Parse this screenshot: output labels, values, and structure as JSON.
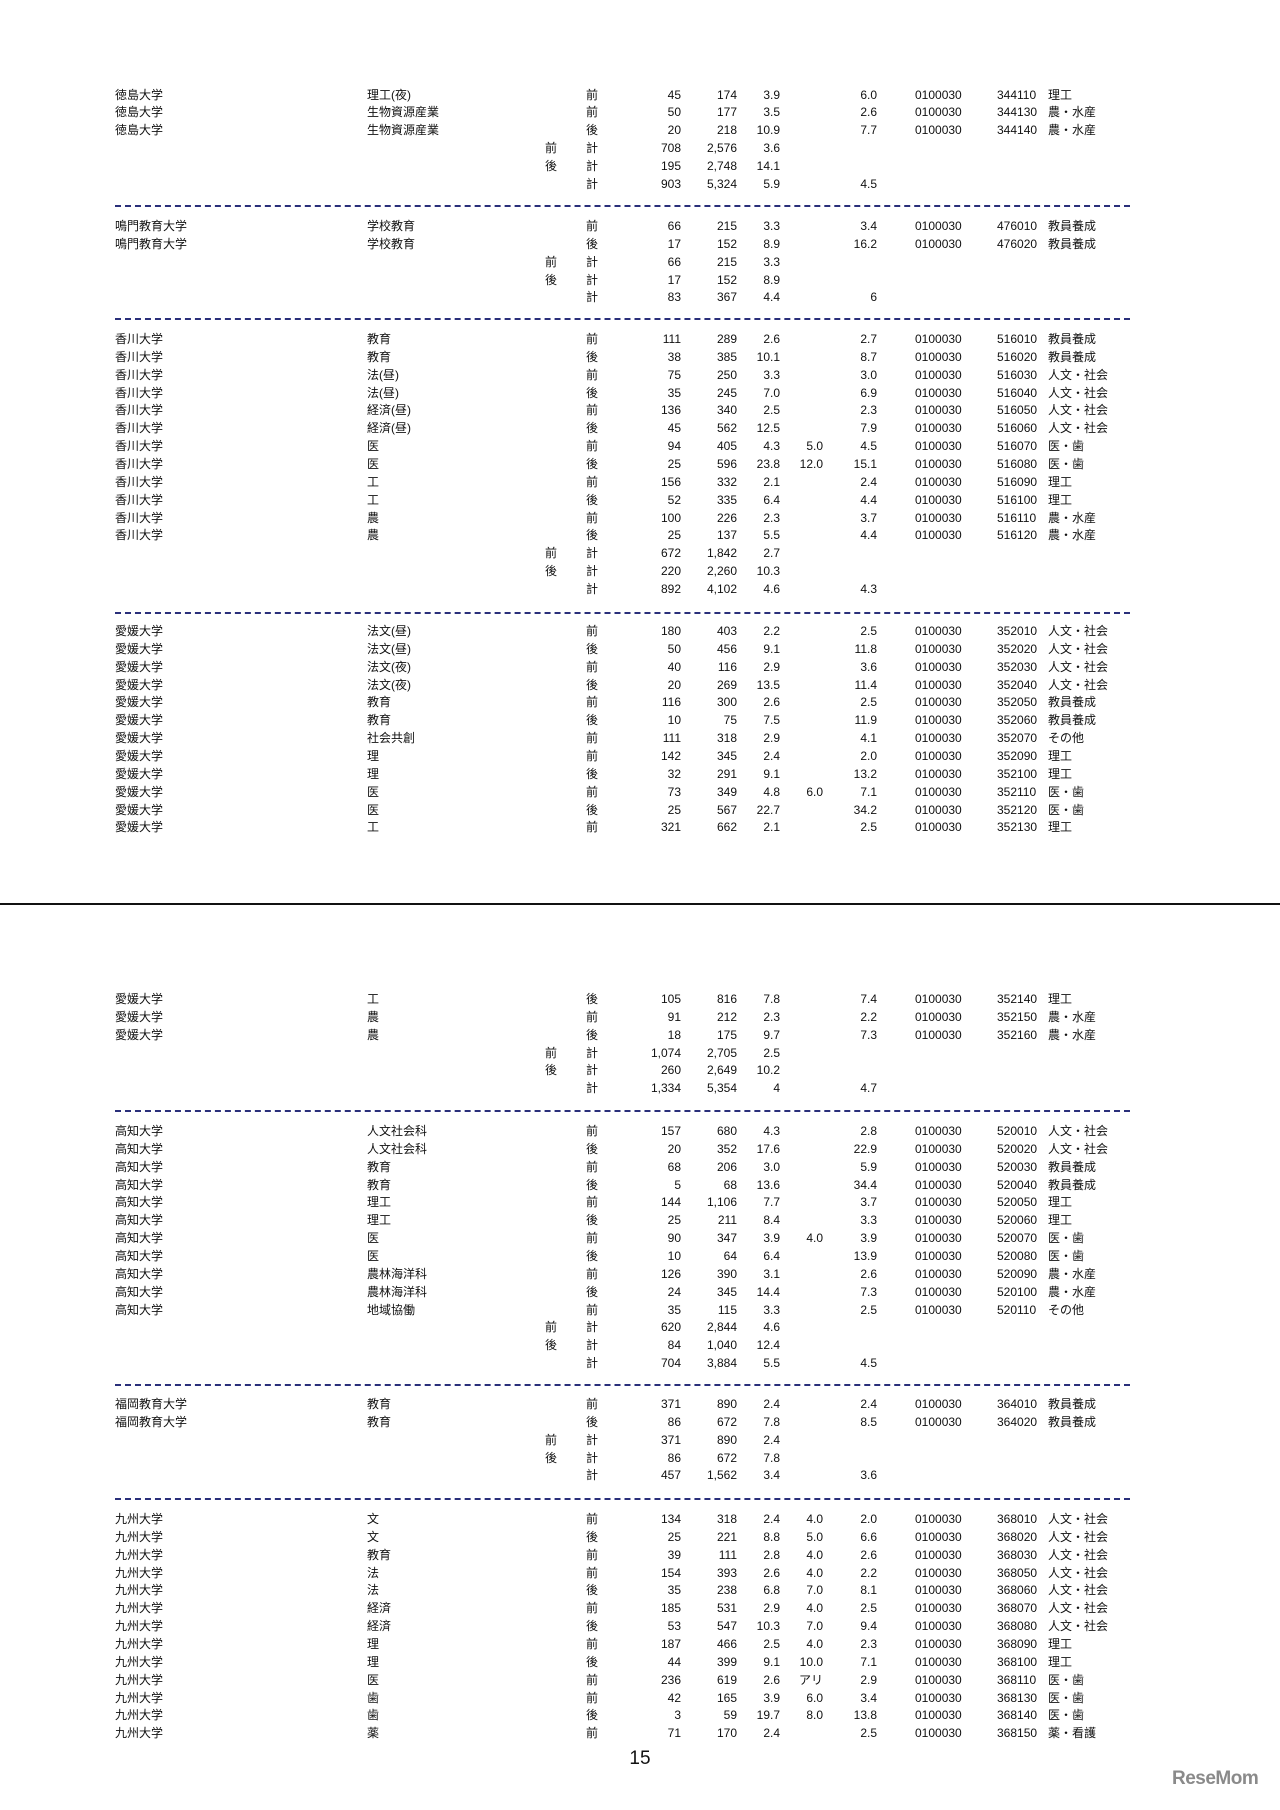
{
  "page_number": "15",
  "logo": "ReseMom",
  "sections": [
    {
      "rows": [
        [
          "徳島大学",
          "理工(夜)",
          "",
          "前",
          "45",
          "174",
          "3.9",
          "",
          "6.0",
          "0100030",
          "344110",
          "理工"
        ],
        [
          "徳島大学",
          "生物資源産業",
          "",
          "前",
          "50",
          "177",
          "3.5",
          "",
          "2.6",
          "0100030",
          "344130",
          "農・水産"
        ],
        [
          "徳島大学",
          "生物資源産業",
          "",
          "後",
          "20",
          "218",
          "10.9",
          "",
          "7.7",
          "0100030",
          "344140",
          "農・水産"
        ],
        [
          "",
          "",
          "前",
          "計",
          "708",
          "2,576",
          "3.6",
          "",
          "",
          "",
          "",
          ""
        ],
        [
          "",
          "",
          "後",
          "計",
          "195",
          "2,748",
          "14.1",
          "",
          "",
          "",
          "",
          ""
        ],
        [
          "",
          "",
          "",
          "計",
          "903",
          "5,324",
          "5.9",
          "",
          "4.5",
          "",
          "",
          ""
        ]
      ]
    },
    {
      "rows": [
        [
          "鳴門教育大学",
          "学校教育",
          "",
          "前",
          "66",
          "215",
          "3.3",
          "",
          "3.4",
          "0100030",
          "476010",
          "教員養成"
        ],
        [
          "鳴門教育大学",
          "学校教育",
          "",
          "後",
          "17",
          "152",
          "8.9",
          "",
          "16.2",
          "0100030",
          "476020",
          "教員養成"
        ],
        [
          "",
          "",
          "前",
          "計",
          "66",
          "215",
          "3.3",
          "",
          "",
          "",
          "",
          ""
        ],
        [
          "",
          "",
          "後",
          "計",
          "17",
          "152",
          "8.9",
          "",
          "",
          "",
          "",
          ""
        ],
        [
          "",
          "",
          "",
          "計",
          "83",
          "367",
          "4.4",
          "",
          "6",
          "",
          "",
          ""
        ]
      ]
    },
    {
      "rows": [
        [
          "香川大学",
          "教育",
          "",
          "前",
          "111",
          "289",
          "2.6",
          "",
          "2.7",
          "0100030",
          "516010",
          "教員養成"
        ],
        [
          "香川大学",
          "教育",
          "",
          "後",
          "38",
          "385",
          "10.1",
          "",
          "8.7",
          "0100030",
          "516020",
          "教員養成"
        ],
        [
          "香川大学",
          "法(昼)",
          "",
          "前",
          "75",
          "250",
          "3.3",
          "",
          "3.0",
          "0100030",
          "516030",
          "人文・社会"
        ],
        [
          "香川大学",
          "法(昼)",
          "",
          "後",
          "35",
          "245",
          "7.0",
          "",
          "6.9",
          "0100030",
          "516040",
          "人文・社会"
        ],
        [
          "香川大学",
          "経済(昼)",
          "",
          "前",
          "136",
          "340",
          "2.5",
          "",
          "2.3",
          "0100030",
          "516050",
          "人文・社会"
        ],
        [
          "香川大学",
          "経済(昼)",
          "",
          "後",
          "45",
          "562",
          "12.5",
          "",
          "7.9",
          "0100030",
          "516060",
          "人文・社会"
        ],
        [
          "香川大学",
          "医",
          "",
          "前",
          "94",
          "405",
          "4.3",
          "5.0",
          "4.5",
          "0100030",
          "516070",
          "医・歯"
        ],
        [
          "香川大学",
          "医",
          "",
          "後",
          "25",
          "596",
          "23.8",
          "12.0",
          "15.1",
          "0100030",
          "516080",
          "医・歯"
        ],
        [
          "香川大学",
          "工",
          "",
          "前",
          "156",
          "332",
          "2.1",
          "",
          "2.4",
          "0100030",
          "516090",
          "理工"
        ],
        [
          "香川大学",
          "工",
          "",
          "後",
          "52",
          "335",
          "6.4",
          "",
          "4.4",
          "0100030",
          "516100",
          "理工"
        ],
        [
          "香川大学",
          "農",
          "",
          "前",
          "100",
          "226",
          "2.3",
          "",
          "3.7",
          "0100030",
          "516110",
          "農・水産"
        ],
        [
          "香川大学",
          "農",
          "",
          "後",
          "25",
          "137",
          "5.5",
          "",
          "4.4",
          "0100030",
          "516120",
          "農・水産"
        ],
        [
          "",
          "",
          "前",
          "計",
          "672",
          "1,842",
          "2.7",
          "",
          "",
          "",
          "",
          ""
        ],
        [
          "",
          "",
          "後",
          "計",
          "220",
          "2,260",
          "10.3",
          "",
          "",
          "",
          "",
          ""
        ],
        [
          "",
          "",
          "",
          "計",
          "892",
          "4,102",
          "4.6",
          "",
          "4.3",
          "",
          "",
          ""
        ]
      ]
    },
    {
      "rows": [
        [
          "愛媛大学",
          "法文(昼)",
          "",
          "前",
          "180",
          "403",
          "2.2",
          "",
          "2.5",
          "0100030",
          "352010",
          "人文・社会"
        ],
        [
          "愛媛大学",
          "法文(昼)",
          "",
          "後",
          "50",
          "456",
          "9.1",
          "",
          "11.8",
          "0100030",
          "352020",
          "人文・社会"
        ],
        [
          "愛媛大学",
          "法文(夜)",
          "",
          "前",
          "40",
          "116",
          "2.9",
          "",
          "3.6",
          "0100030",
          "352030",
          "人文・社会"
        ],
        [
          "愛媛大学",
          "法文(夜)",
          "",
          "後",
          "20",
          "269",
          "13.5",
          "",
          "11.4",
          "0100030",
          "352040",
          "人文・社会"
        ],
        [
          "愛媛大学",
          "教育",
          "",
          "前",
          "116",
          "300",
          "2.6",
          "",
          "2.5",
          "0100030",
          "352050",
          "教員養成"
        ],
        [
          "愛媛大学",
          "教育",
          "",
          "後",
          "10",
          "75",
          "7.5",
          "",
          "11.9",
          "0100030",
          "352060",
          "教員養成"
        ],
        [
          "愛媛大学",
          "社会共創",
          "",
          "前",
          "111",
          "318",
          "2.9",
          "",
          "4.1",
          "0100030",
          "352070",
          "その他"
        ],
        [
          "愛媛大学",
          "理",
          "",
          "前",
          "142",
          "345",
          "2.4",
          "",
          "2.0",
          "0100030",
          "352090",
          "理工"
        ],
        [
          "愛媛大学",
          "理",
          "",
          "後",
          "32",
          "291",
          "9.1",
          "",
          "13.2",
          "0100030",
          "352100",
          "理工"
        ],
        [
          "愛媛大学",
          "医",
          "",
          "前",
          "73",
          "349",
          "4.8",
          "6.0",
          "7.1",
          "0100030",
          "352110",
          "医・歯"
        ],
        [
          "愛媛大学",
          "医",
          "",
          "後",
          "25",
          "567",
          "22.7",
          "",
          "34.2",
          "0100030",
          "352120",
          "医・歯"
        ],
        [
          "愛媛大学",
          "工",
          "",
          "前",
          "321",
          "662",
          "2.1",
          "",
          "2.5",
          "0100030",
          "352130",
          "理工"
        ]
      ]
    },
    {
      "rows": [
        [
          "愛媛大学",
          "工",
          "",
          "後",
          "105",
          "816",
          "7.8",
          "",
          "7.4",
          "0100030",
          "352140",
          "理工"
        ],
        [
          "愛媛大学",
          "農",
          "",
          "前",
          "91",
          "212",
          "2.3",
          "",
          "2.2",
          "0100030",
          "352150",
          "農・水産"
        ],
        [
          "愛媛大学",
          "農",
          "",
          "後",
          "18",
          "175",
          "9.7",
          "",
          "7.3",
          "0100030",
          "352160",
          "農・水産"
        ],
        [
          "",
          "",
          "前",
          "計",
          "1,074",
          "2,705",
          "2.5",
          "",
          "",
          "",
          "",
          ""
        ],
        [
          "",
          "",
          "後",
          "計",
          "260",
          "2,649",
          "10.2",
          "",
          "",
          "",
          "",
          ""
        ],
        [
          "",
          "",
          "",
          "計",
          "1,334",
          "5,354",
          "4",
          "",
          "4.7",
          "",
          "",
          ""
        ]
      ]
    },
    {
      "rows": [
        [
          "高知大学",
          "人文社会科",
          "",
          "前",
          "157",
          "680",
          "4.3",
          "",
          "2.8",
          "0100030",
          "520010",
          "人文・社会"
        ],
        [
          "高知大学",
          "人文社会科",
          "",
          "後",
          "20",
          "352",
          "17.6",
          "",
          "22.9",
          "0100030",
          "520020",
          "人文・社会"
        ],
        [
          "高知大学",
          "教育",
          "",
          "前",
          "68",
          "206",
          "3.0",
          "",
          "5.9",
          "0100030",
          "520030",
          "教員養成"
        ],
        [
          "高知大学",
          "教育",
          "",
          "後",
          "5",
          "68",
          "13.6",
          "",
          "34.4",
          "0100030",
          "520040",
          "教員養成"
        ],
        [
          "高知大学",
          "理工",
          "",
          "前",
          "144",
          "1,106",
          "7.7",
          "",
          "3.7",
          "0100030",
          "520050",
          "理工"
        ],
        [
          "高知大学",
          "理工",
          "",
          "後",
          "25",
          "211",
          "8.4",
          "",
          "3.3",
          "0100030",
          "520060",
          "理工"
        ],
        [
          "高知大学",
          "医",
          "",
          "前",
          "90",
          "347",
          "3.9",
          "4.0",
          "3.9",
          "0100030",
          "520070",
          "医・歯"
        ],
        [
          "高知大学",
          "医",
          "",
          "後",
          "10",
          "64",
          "6.4",
          "",
          "13.9",
          "0100030",
          "520080",
          "医・歯"
        ],
        [
          "高知大学",
          "農林海洋科",
          "",
          "前",
          "126",
          "390",
          "3.1",
          "",
          "2.6",
          "0100030",
          "520090",
          "農・水産"
        ],
        [
          "高知大学",
          "農林海洋科",
          "",
          "後",
          "24",
          "345",
          "14.4",
          "",
          "7.3",
          "0100030",
          "520100",
          "農・水産"
        ],
        [
          "高知大学",
          "地域協働",
          "",
          "前",
          "35",
          "115",
          "3.3",
          "",
          "2.5",
          "0100030",
          "520110",
          "その他"
        ],
        [
          "",
          "",
          "前",
          "計",
          "620",
          "2,844",
          "4.6",
          "",
          "",
          "",
          "",
          ""
        ],
        [
          "",
          "",
          "後",
          "計",
          "84",
          "1,040",
          "12.4",
          "",
          "",
          "",
          "",
          ""
        ],
        [
          "",
          "",
          "",
          "計",
          "704",
          "3,884",
          "5.5",
          "",
          "4.5",
          "",
          "",
          ""
        ]
      ]
    },
    {
      "rows": [
        [
          "福岡教育大学",
          "教育",
          "",
          "前",
          "371",
          "890",
          "2.4",
          "",
          "2.4",
          "0100030",
          "364010",
          "教員養成"
        ],
        [
          "福岡教育大学",
          "教育",
          "",
          "後",
          "86",
          "672",
          "7.8",
          "",
          "8.5",
          "0100030",
          "364020",
          "教員養成"
        ],
        [
          "",
          "",
          "前",
          "計",
          "371",
          "890",
          "2.4",
          "",
          "",
          "",
          "",
          ""
        ],
        [
          "",
          "",
          "後",
          "計",
          "86",
          "672",
          "7.8",
          "",
          "",
          "",
          "",
          ""
        ],
        [
          "",
          "",
          "",
          "計",
          "457",
          "1,562",
          "3.4",
          "",
          "3.6",
          "",
          "",
          ""
        ]
      ]
    },
    {
      "rows": [
        [
          "九州大学",
          "文",
          "",
          "前",
          "134",
          "318",
          "2.4",
          "4.0",
          "2.0",
          "0100030",
          "368010",
          "人文・社会"
        ],
        [
          "九州大学",
          "文",
          "",
          "後",
          "25",
          "221",
          "8.8",
          "5.0",
          "6.6",
          "0100030",
          "368020",
          "人文・社会"
        ],
        [
          "九州大学",
          "教育",
          "",
          "前",
          "39",
          "111",
          "2.8",
          "4.0",
          "2.6",
          "0100030",
          "368030",
          "人文・社会"
        ],
        [
          "九州大学",
          "法",
          "",
          "前",
          "154",
          "393",
          "2.6",
          "4.0",
          "2.2",
          "0100030",
          "368050",
          "人文・社会"
        ],
        [
          "九州大学",
          "法",
          "",
          "後",
          "35",
          "238",
          "6.8",
          "7.0",
          "8.1",
          "0100030",
          "368060",
          "人文・社会"
        ],
        [
          "九州大学",
          "経済",
          "",
          "前",
          "185",
          "531",
          "2.9",
          "4.0",
          "2.5",
          "0100030",
          "368070",
          "人文・社会"
        ],
        [
          "九州大学",
          "経済",
          "",
          "後",
          "53",
          "547",
          "10.3",
          "7.0",
          "9.4",
          "0100030",
          "368080",
          "人文・社会"
        ],
        [
          "九州大学",
          "理",
          "",
          "前",
          "187",
          "466",
          "2.5",
          "4.0",
          "2.3",
          "0100030",
          "368090",
          "理工"
        ],
        [
          "九州大学",
          "理",
          "",
          "後",
          "44",
          "399",
          "9.1",
          "10.0",
          "7.1",
          "0100030",
          "368100",
          "理工"
        ],
        [
          "九州大学",
          "医",
          "",
          "前",
          "236",
          "619",
          "2.6",
          "アリ",
          "2.9",
          "0100030",
          "368110",
          "医・歯"
        ],
        [
          "九州大学",
          "歯",
          "",
          "前",
          "42",
          "165",
          "3.9",
          "6.0",
          "3.4",
          "0100030",
          "368130",
          "医・歯"
        ],
        [
          "九州大学",
          "歯",
          "",
          "後",
          "3",
          "59",
          "19.7",
          "8.0",
          "13.8",
          "0100030",
          "368140",
          "医・歯"
        ],
        [
          "九州大学",
          "薬",
          "",
          "前",
          "71",
          "170",
          "2.4",
          "",
          "2.5",
          "0100030",
          "368150",
          "薬・看護"
        ]
      ]
    }
  ]
}
